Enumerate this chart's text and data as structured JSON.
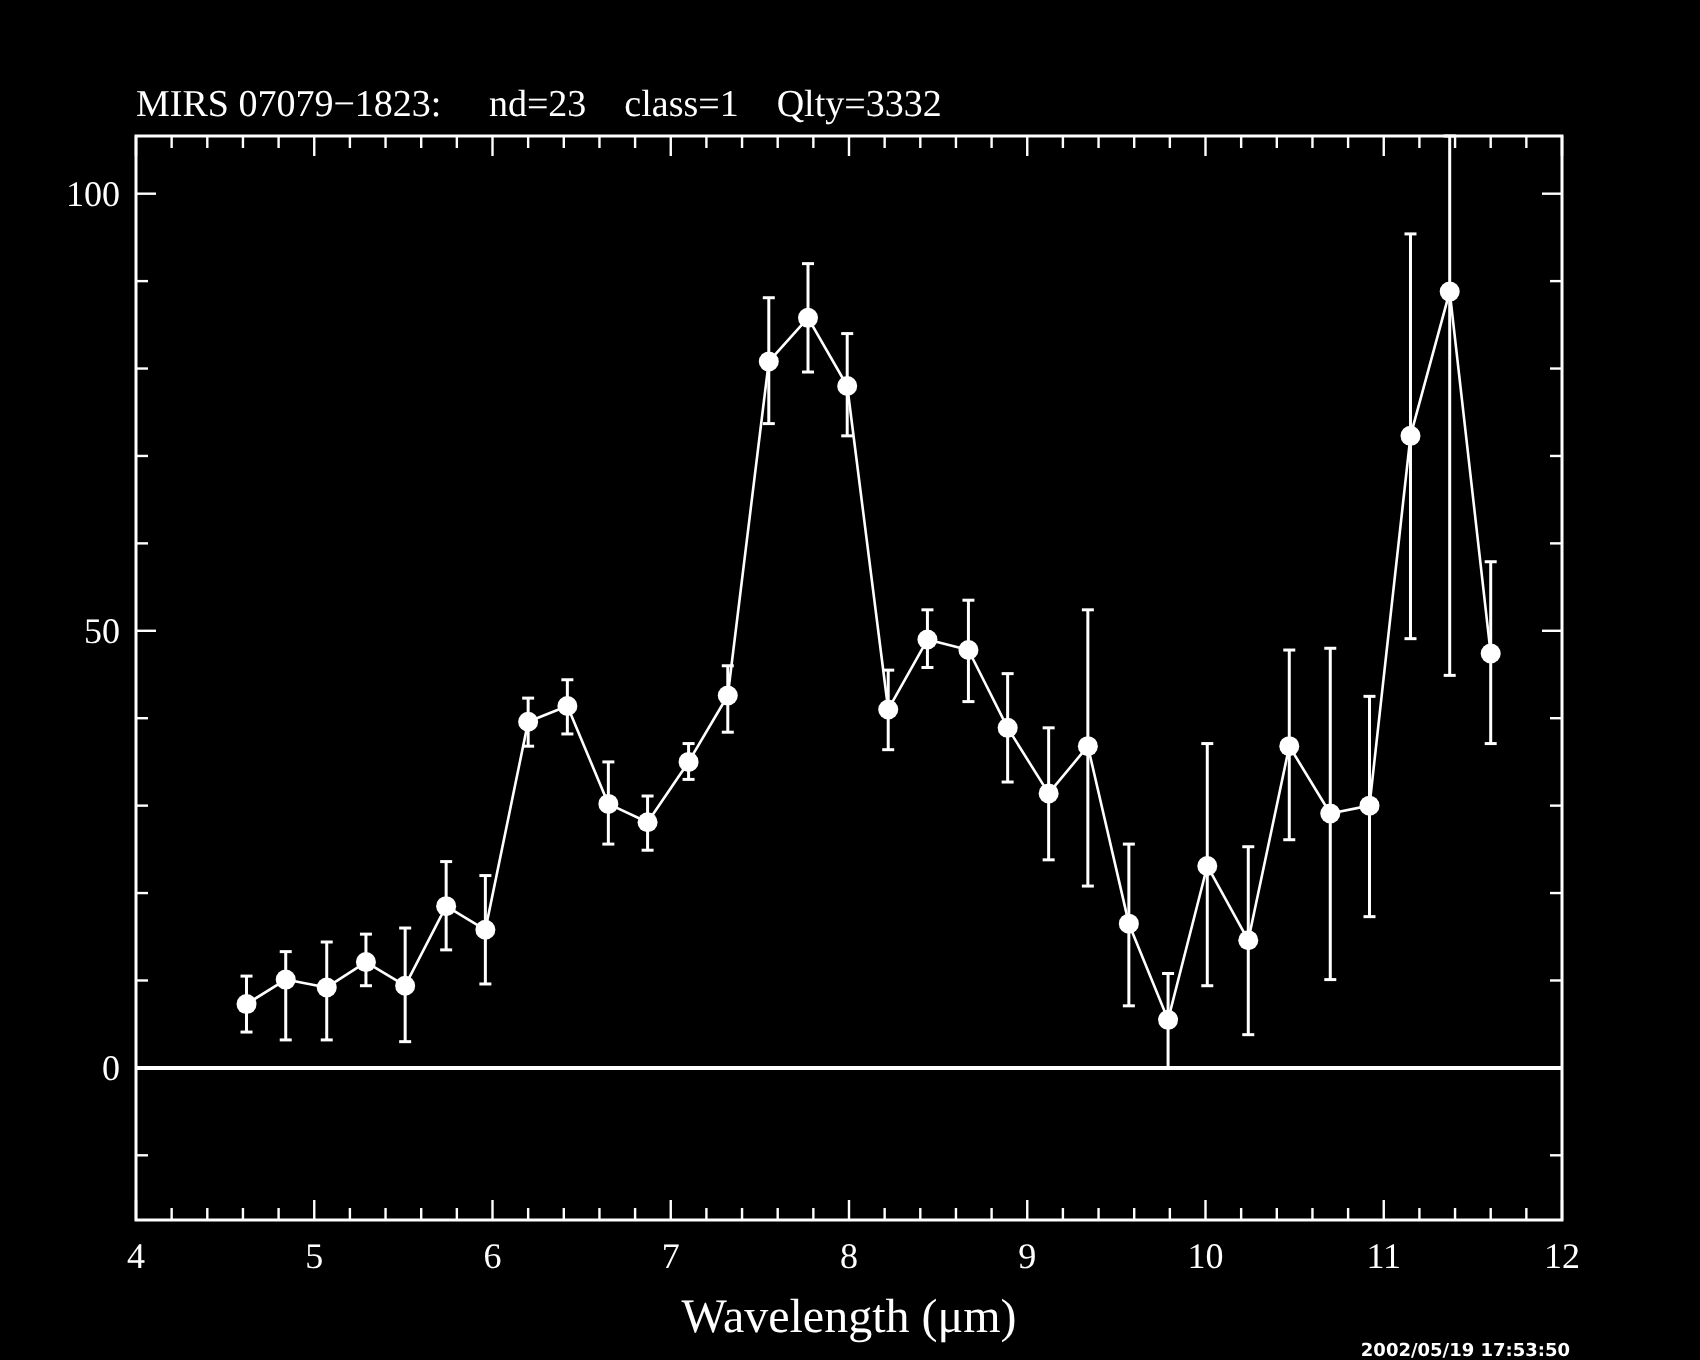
{
  "chart_data": {
    "type": "line",
    "title": "MIRS 07079−1823:     nd=23    class=1    Qlty=3332",
    "xlabel": "Wavelength (μm)",
    "x": [
      4.62,
      4.84,
      5.07,
      5.29,
      5.51,
      5.74,
      5.96,
      6.2,
      6.42,
      6.65,
      6.87,
      7.1,
      7.32,
      7.55,
      7.77,
      7.99,
      8.22,
      8.44,
      8.67,
      8.89,
      9.12,
      9.34,
      9.57,
      9.79,
      10.01,
      10.24,
      10.47,
      10.7,
      10.92,
      11.15,
      11.37,
      11.6
    ],
    "series": [
      {
        "color": "#ffffff",
        "values": [
          7.3,
          10.1,
          9.2,
          12.1,
          9.4,
          18.5,
          15.8,
          39.6,
          41.4,
          30.2,
          28.1,
          35.0,
          42.6,
          80.8,
          85.8,
          78.0,
          41.0,
          49.0,
          47.8,
          38.9,
          31.4,
          36.8,
          16.5,
          5.5,
          23.1,
          14.6,
          36.8,
          29.1,
          30.0,
          72.3,
          88.8,
          47.4
        ],
        "errors": [
          [
            4.1,
            10.5
          ],
          [
            3.2,
            13.3
          ],
          [
            3.2,
            14.4
          ],
          [
            9.4,
            15.3
          ],
          [
            3.0,
            16.0
          ],
          [
            13.5,
            23.6
          ],
          [
            9.6,
            22.0
          ],
          [
            36.8,
            42.3
          ],
          [
            38.2,
            44.4
          ],
          [
            25.6,
            35.0
          ],
          [
            24.9,
            31.1
          ],
          [
            33.0,
            37.1
          ],
          [
            38.4,
            46.0
          ],
          [
            73.7,
            88.1
          ],
          [
            79.6,
            92.0
          ],
          [
            72.3,
            84.0
          ],
          [
            36.4,
            45.5
          ],
          [
            45.8,
            52.4
          ],
          [
            41.9,
            53.5
          ],
          [
            32.7,
            45.1
          ],
          [
            23.8,
            38.9
          ],
          [
            20.8,
            52.4
          ],
          [
            7.1,
            25.6
          ],
          [
            0,
            10.8
          ],
          [
            9.4,
            37.1
          ],
          [
            3.8,
            25.3
          ],
          [
            26.1,
            47.8
          ],
          [
            10.1,
            48.0
          ],
          [
            17.3,
            42.5
          ],
          [
            49.1,
            95.4
          ],
          [
            44.9,
            106.6
          ],
          [
            37.1,
            57.9
          ]
        ]
      }
    ],
    "xlim": [
      4,
      12
    ],
    "ylim": [
      -17.4,
      106.6
    ],
    "xticks": [
      4,
      {
        "value": 4.2,
        "label": null
      },
      {
        "value": 4.4,
        "label": null
      },
      {
        "value": 4.6,
        "label": null
      },
      {
        "value": 4.8,
        "label": null
      },
      5,
      {
        "value": 5.2,
        "label": null
      },
      {
        "value": 5.4,
        "label": null
      },
      {
        "value": 5.6,
        "label": null
      },
      {
        "value": 5.8,
        "label": null
      },
      6,
      {
        "value": 6.2,
        "label": null
      },
      {
        "value": 6.4,
        "label": null
      },
      {
        "value": 6.6,
        "label": null
      },
      {
        "value": 6.8,
        "label": null
      },
      7,
      {
        "value": 7.2,
        "label": null
      },
      {
        "value": 7.4,
        "label": null
      },
      {
        "value": 7.6,
        "label": null
      },
      {
        "value": 7.8,
        "label": null
      },
      8,
      {
        "value": 8.2,
        "label": null
      },
      {
        "value": 8.4,
        "label": null
      },
      {
        "value": 8.6,
        "label": null
      },
      {
        "value": 8.8,
        "label": null
      },
      9,
      {
        "value": 9.2,
        "label": null
      },
      {
        "value": 9.4,
        "label": null
      },
      {
        "value": 9.6,
        "label": null
      },
      {
        "value": 9.8,
        "label": null
      },
      10,
      {
        "value": 10.2,
        "label": null
      },
      {
        "value": 10.4,
        "label": null
      },
      {
        "value": 10.6,
        "label": null
      },
      {
        "value": 10.8,
        "label": null
      },
      11,
      {
        "value": 11.2,
        "label": null
      },
      {
        "value": 11.4,
        "label": null
      },
      {
        "value": 11.6,
        "label": null
      },
      {
        "value": 11.8,
        "label": null
      },
      12
    ],
    "yticks": [
      {
        "value": -10,
        "label": null
      },
      0,
      {
        "value": 10,
        "label": null
      },
      {
        "value": 20,
        "label": null
      },
      {
        "value": 30,
        "label": null
      },
      {
        "value": 40,
        "label": null
      },
      50,
      {
        "value": 60,
        "label": null
      },
      {
        "value": 70,
        "label": null
      },
      {
        "value": 80,
        "label": null
      },
      {
        "value": 90,
        "label": null
      },
      100
    ],
    "ref_lines": [
      {
        "axis": "y",
        "value": 0,
        "color": "#ffffff"
      }
    ],
    "annotations": [
      "2002/05/19 17:53:50"
    ],
    "marker": "circle",
    "line_style": "solid"
  }
}
